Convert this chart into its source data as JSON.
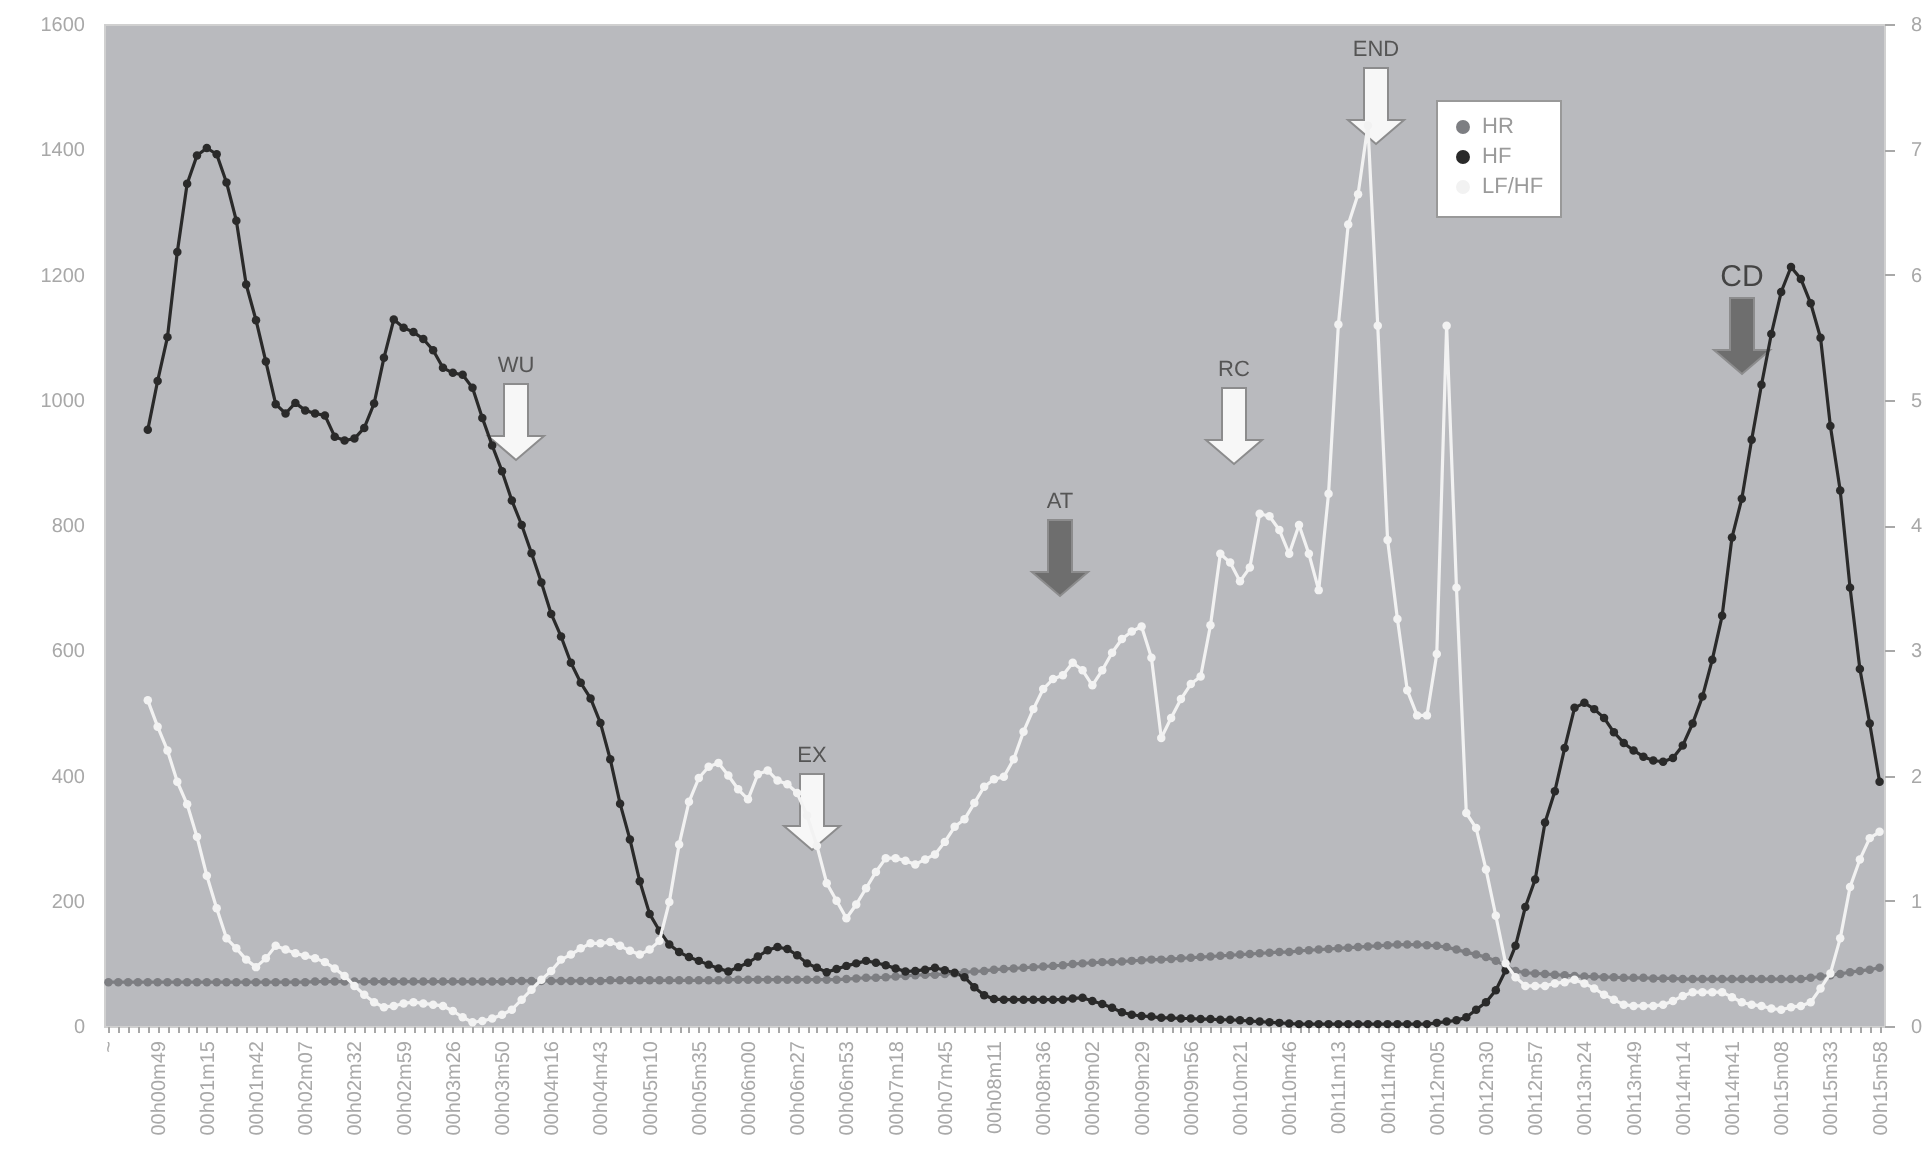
{
  "chart_data": {
    "type": "line",
    "ylim": [
      0,
      1600
    ],
    "yticks": [
      0,
      200,
      400,
      600,
      800,
      1000,
      1200,
      1400,
      1600
    ],
    "y2lim": [
      0,
      8
    ],
    "y2ticks": [
      0,
      1,
      2,
      3,
      4,
      5,
      6,
      7,
      8
    ],
    "categories": [
      "~",
      null,
      null,
      null,
      null,
      "00h00m49",
      null,
      null,
      null,
      null,
      "00h01m15",
      null,
      null,
      null,
      null,
      "00h01m42",
      null,
      null,
      null,
      null,
      "00h02m07",
      null,
      null,
      null,
      null,
      "00h02m32",
      null,
      null,
      null,
      null,
      "00h02m59",
      null,
      null,
      null,
      null,
      "00h03m26",
      null,
      null,
      null,
      null,
      "00h03m50",
      null,
      null,
      null,
      null,
      "00h04m16",
      null,
      null,
      null,
      null,
      "00h04m43",
      null,
      null,
      null,
      null,
      "00h05m10",
      null,
      null,
      null,
      null,
      "00h05m35",
      null,
      null,
      null,
      null,
      "00h06m00",
      null,
      null,
      null,
      null,
      "00h06m27",
      null,
      null,
      null,
      null,
      "00h06m53",
      null,
      null,
      null,
      null,
      "00h07m18",
      null,
      null,
      null,
      null,
      "00h07m45",
      null,
      null,
      null,
      null,
      "00h08m11",
      null,
      null,
      null,
      null,
      "00h08m36",
      null,
      null,
      null,
      null,
      "00h09m02",
      null,
      null,
      null,
      null,
      "00h09m29",
      null,
      null,
      null,
      null,
      "00h09m56",
      null,
      null,
      null,
      null,
      "00h10m21",
      null,
      null,
      null,
      null,
      "00h10m46",
      null,
      null,
      null,
      null,
      "00h11m13",
      null,
      null,
      null,
      null,
      "00h11m40",
      null,
      null,
      null,
      null,
      "00h12m05",
      null,
      null,
      null,
      null,
      "00h12m30",
      null,
      null,
      null,
      null,
      "00h12m57",
      null,
      null,
      null,
      null,
      "00h13m24",
      null,
      null,
      null,
      null,
      "00h13m49",
      null,
      null,
      null,
      null,
      "00h14m14",
      null,
      null,
      null,
      null,
      "00h14m41",
      null,
      null,
      null,
      null,
      "00h15m08",
      null,
      null,
      null,
      null,
      "00h15m33",
      null,
      null,
      null,
      null,
      "00h15m58"
    ],
    "legend": "top right",
    "marker": "circle",
    "line_style": "solid",
    "grid": false,
    "annotations": [
      "WU",
      "EX",
      "AT",
      "RC",
      "END",
      "CD"
    ],
    "series": [
      {
        "name": "HR",
        "color": "#7d7e82",
        "values": [
          70,
          70,
          70,
          70,
          70,
          70,
          70,
          70,
          70,
          70,
          70,
          70,
          70,
          70,
          70,
          70,
          70,
          70,
          70,
          70,
          70,
          71,
          71,
          71,
          71,
          71,
          71,
          71,
          71,
          71,
          71,
          71,
          71,
          71,
          71,
          71,
          71,
          71,
          71,
          71,
          71,
          72,
          72,
          72,
          72,
          72,
          72,
          72,
          72,
          72,
          72,
          73,
          73,
          73,
          73,
          73,
          73,
          73,
          73,
          73,
          73,
          73,
          73,
          74,
          74,
          74,
          74,
          74,
          74,
          74,
          74,
          74,
          74,
          74,
          74,
          75,
          76,
          77,
          77,
          78,
          79,
          80,
          81,
          82,
          82,
          83,
          84,
          86,
          87,
          88,
          90,
          91,
          92,
          93,
          94,
          95,
          96,
          97,
          99,
          100,
          101,
          102,
          102,
          103,
          104,
          105,
          106,
          106,
          107,
          108,
          109,
          110,
          111,
          112,
          113,
          114,
          115,
          116,
          117,
          118,
          118,
          120,
          121,
          122,
          123,
          124,
          125,
          126,
          127,
          128,
          129,
          130,
          130,
          130,
          129,
          128,
          126,
          122,
          118,
          114,
          110,
          104,
          96,
          88,
          85,
          84,
          83,
          82,
          81,
          80,
          79,
          79,
          78,
          78,
          77,
          77,
          77,
          76,
          76,
          76,
          75,
          75,
          75,
          75,
          75,
          75,
          75,
          75,
          75,
          75,
          75,
          75,
          75,
          77,
          79,
          81,
          83,
          86,
          88,
          90,
          93
        ]
      },
      {
        "name": "HF",
        "color": "#2a2a2a",
        "values": [
          null,
          null,
          null,
          null,
          952,
          1030,
          1100,
          1236,
          1345,
          1390,
          1402,
          1392,
          1347,
          1286,
          1184,
          1127,
          1061,
          993,
          978,
          995,
          983,
          978,
          975,
          941,
          935,
          938,
          955,
          994,
          1067,
          1128,
          1115,
          1108,
          1097,
          1079,
          1051,
          1043,
          1040,
          1019,
          971,
          927,
          886,
          839,
          800,
          755,
          708,
          658,
          622,
          580,
          548,
          523,
          484,
          426,
          355,
          298,
          231,
          179,
          152,
          130,
          118,
          110,
          104,
          98,
          92,
          87,
          94,
          101,
          111,
          121,
          126,
          123,
          113,
          100,
          93,
          86,
          91,
          96,
          100,
          104,
          101,
          97,
          92,
          87,
          88,
          90,
          93,
          89,
          85,
          78,
          62,
          49,
          43,
          42,
          42,
          42,
          42,
          42,
          42,
          42,
          44,
          45,
          40,
          35,
          29,
          22,
          18,
          16,
          15,
          13,
          13,
          12,
          12,
          11,
          11,
          10,
          10,
          9,
          8,
          7,
          6,
          5,
          4,
          3,
          3,
          3,
          3,
          3,
          3,
          3,
          3,
          3,
          3,
          3,
          3,
          3,
          3,
          5,
          7,
          9,
          14,
          26,
          38,
          57,
          89,
          128,
          190,
          234,
          325,
          375,
          444,
          508,
          516,
          506,
          492,
          469,
          452,
          440,
          430,
          424,
          422,
          428,
          448,
          483,
          526,
          585,
          655,
          780,
          842,
          936,
          1024,
          1105,
          1172,
          1212,
          1193,
          1154,
          1099,
          958,
          855,
          700,
          570,
          483,
          390
        ]
      },
      {
        "name": "LF/HF",
        "color": "#f2f2f2",
        "axis": "y2",
        "values": [
          null,
          null,
          null,
          null,
          2.6,
          2.39,
          2.2,
          1.95,
          1.77,
          1.51,
          1.2,
          0.94,
          0.7,
          0.62,
          0.53,
          0.47,
          0.54,
          0.64,
          0.61,
          0.58,
          0.56,
          0.54,
          0.51,
          0.46,
          0.4,
          0.32,
          0.25,
          0.19,
          0.15,
          0.16,
          0.18,
          0.19,
          0.18,
          0.17,
          0.16,
          0.12,
          0.07,
          0.03,
          0.04,
          0.06,
          0.09,
          0.13,
          0.21,
          0.29,
          0.37,
          0.44,
          0.53,
          0.57,
          0.62,
          0.66,
          0.66,
          0.67,
          0.64,
          0.6,
          0.57,
          0.61,
          0.68,
          0.99,
          1.45,
          1.79,
          1.98,
          2.07,
          2.1,
          2.0,
          1.89,
          1.81,
          2.01,
          2.04,
          1.96,
          1.93,
          1.86,
          1.68,
          1.44,
          1.14,
          1.0,
          0.86,
          0.97,
          1.1,
          1.23,
          1.34,
          1.34,
          1.32,
          1.29,
          1.33,
          1.37,
          1.47,
          1.59,
          1.65,
          1.78,
          1.91,
          1.97,
          1.99,
          2.13,
          2.35,
          2.53,
          2.69,
          2.77,
          2.8,
          2.9,
          2.84,
          2.72,
          2.84,
          2.98,
          3.09,
          3.15,
          3.19,
          2.94,
          2.3,
          2.46,
          2.61,
          2.73,
          2.79,
          3.2,
          3.77,
          3.7,
          3.55,
          3.66,
          4.09,
          4.07,
          3.96,
          3.77,
          4.0,
          3.77,
          3.48,
          4.25,
          5.6,
          6.4,
          6.64,
          7.19,
          5.59,
          3.88,
          3.25,
          2.68,
          2.48,
          2.48,
          2.97,
          5.59,
          3.5,
          1.7,
          1.58,
          1.25,
          0.88,
          0.5,
          0.39,
          0.32,
          0.32,
          0.32,
          0.34,
          0.35,
          0.37,
          0.34,
          0.3,
          0.25,
          0.21,
          0.17,
          0.16,
          0.16,
          0.16,
          0.17,
          0.2,
          0.24,
          0.27,
          0.27,
          0.27,
          0.27,
          0.23,
          0.19,
          0.17,
          0.16,
          0.14,
          0.13,
          0.15,
          0.16,
          0.19,
          0.3,
          0.42,
          0.7,
          1.11,
          1.33,
          1.5,
          1.55
        ]
      }
    ]
  }
}
